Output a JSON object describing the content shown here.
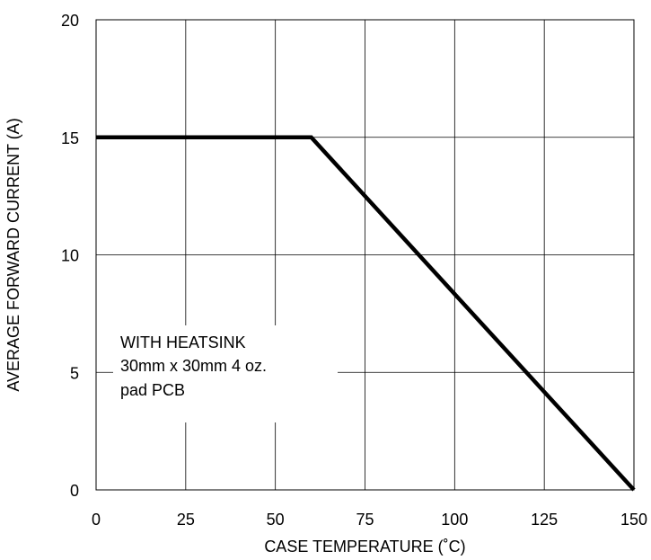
{
  "chart_data": {
    "type": "line",
    "xlabel": "CASE TEMPERATURE (˚C)",
    "ylabel": "AVERAGE FORWARD CURRENT (A)",
    "xlim": [
      0,
      150
    ],
    "ylim": [
      0,
      20
    ],
    "xticks": [
      0,
      25,
      50,
      75,
      100,
      125,
      150
    ],
    "yticks": [
      0,
      5,
      10,
      15,
      20
    ],
    "grid": true,
    "annotation": [
      "WITH HEATSINK",
      "30mm x 30mm 4 oz.",
      "pad PCB"
    ],
    "series": [
      {
        "x": [
          0,
          60,
          150
        ],
        "y": [
          15,
          15,
          0
        ]
      }
    ]
  }
}
